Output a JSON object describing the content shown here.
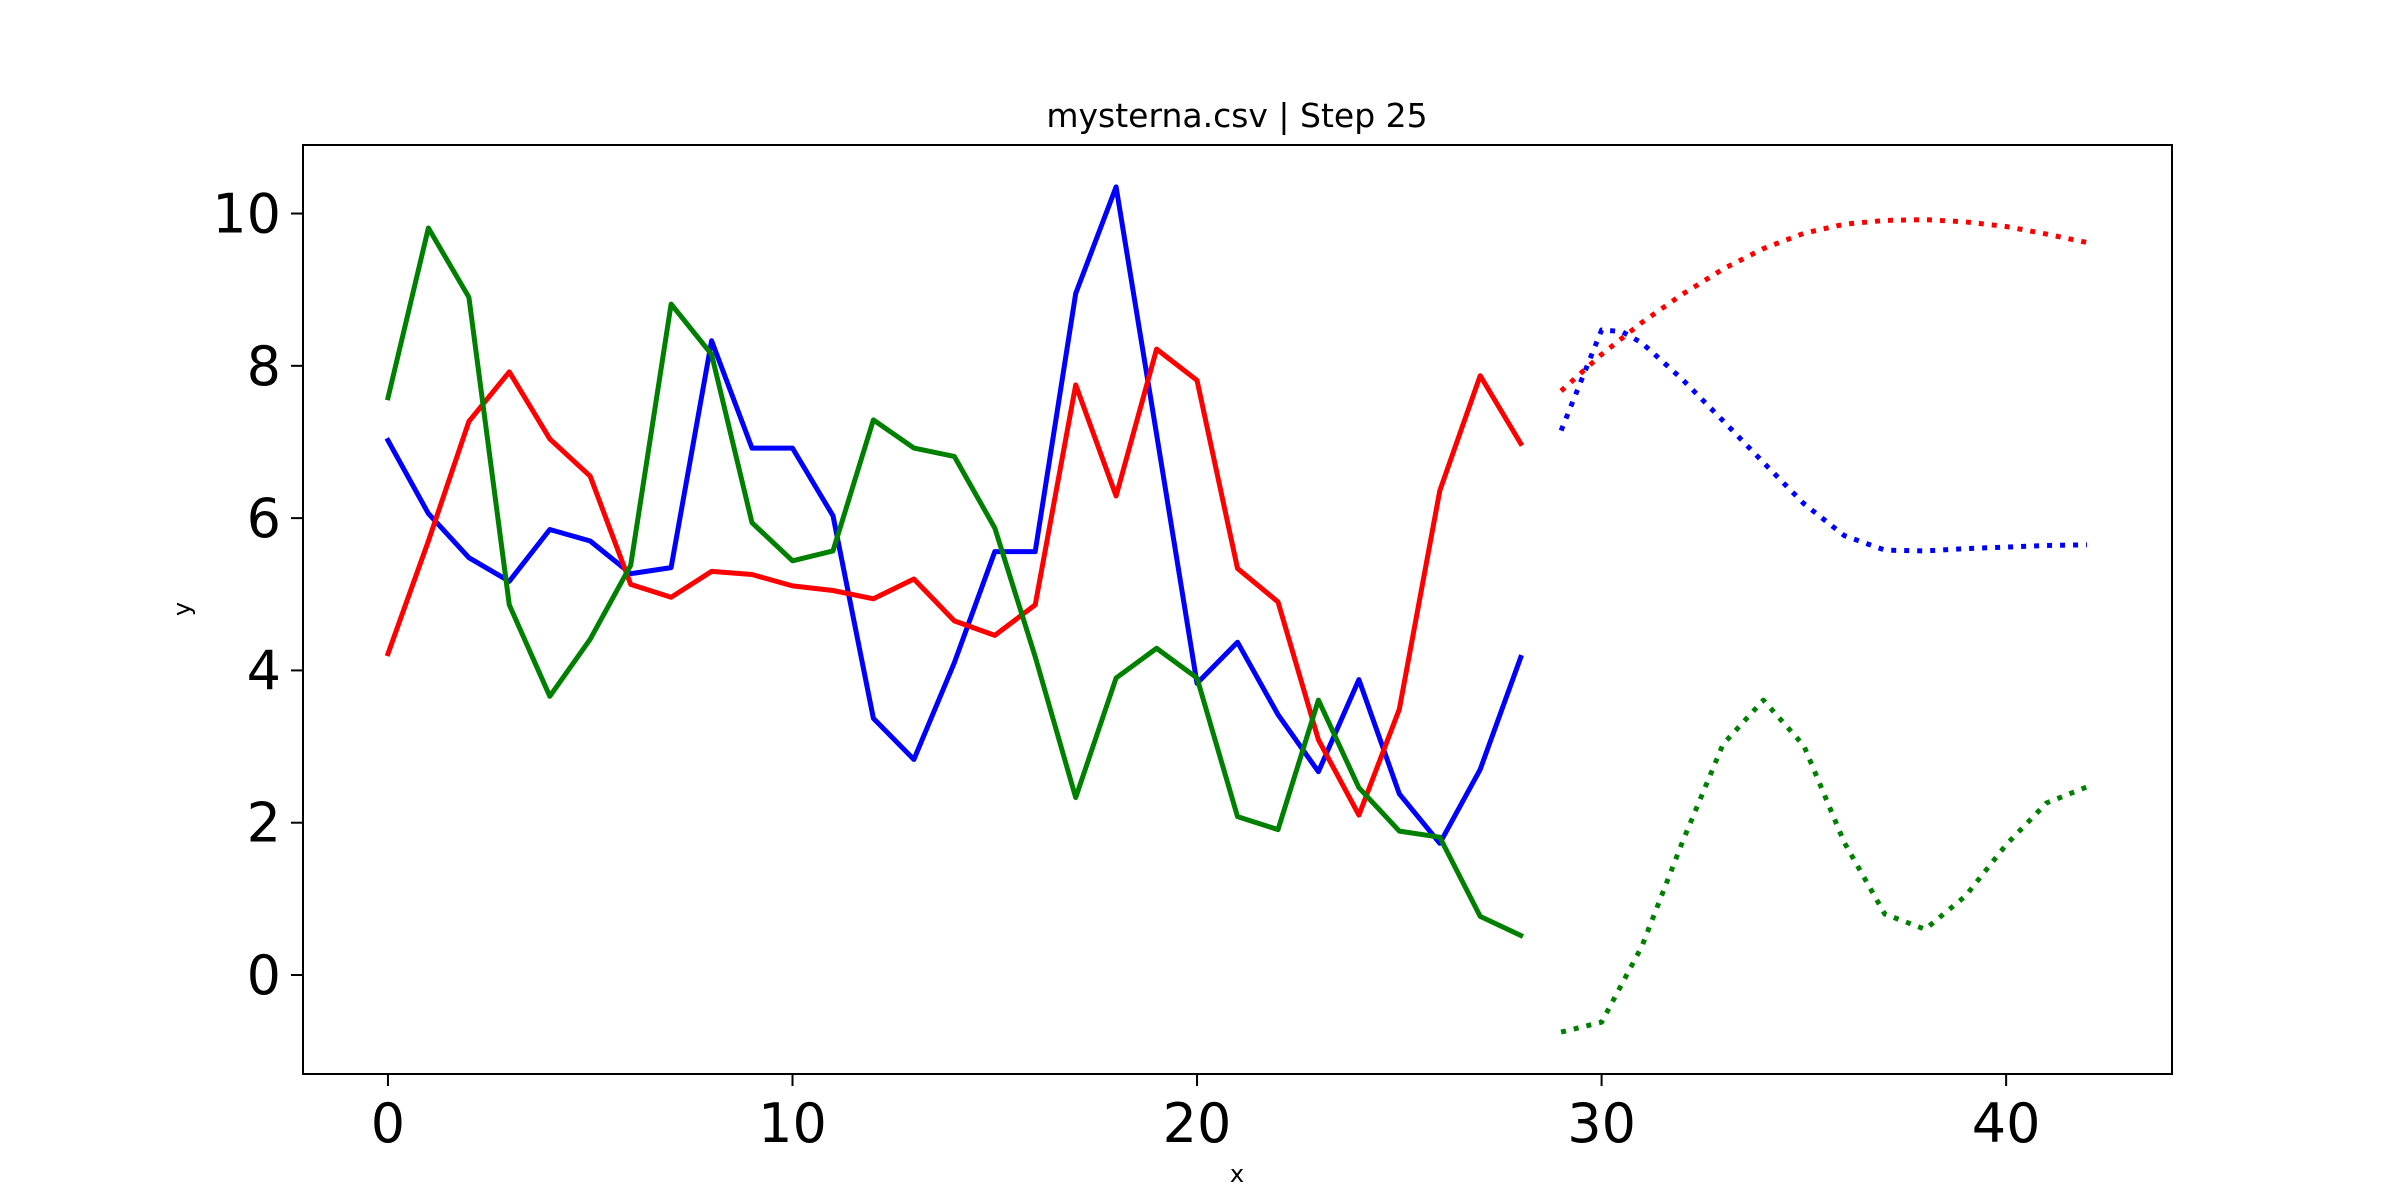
{
  "chart_data": {
    "type": "line",
    "title": "mysterna.csv | Step 25",
    "xlabel": "x",
    "ylabel": "y",
    "xlim": [
      -2.1,
      44.1
    ],
    "ylim": [
      -1.3,
      10.9
    ],
    "xticks": [
      0,
      10,
      20,
      30,
      40
    ],
    "yticks": [
      0,
      2,
      4,
      6,
      8,
      10
    ],
    "grid": false,
    "legend": "none",
    "series": [
      {
        "color": "#0000ff",
        "style": "solid",
        "x": [
          0,
          1,
          2,
          3,
          4,
          5,
          6,
          7,
          8,
          9,
          10,
          11,
          12,
          13,
          14,
          15,
          16,
          17,
          18,
          19,
          20,
          21,
          22,
          23,
          24,
          25,
          26,
          27,
          28
        ],
        "y": [
          7.02,
          6.06,
          5.48,
          5.17,
          5.85,
          5.7,
          5.27,
          5.35,
          8.33,
          6.92,
          6.92,
          6.03,
          3.37,
          2.83,
          4.1,
          5.56,
          5.56,
          8.95,
          10.35,
          7.1,
          3.83,
          4.37,
          3.42,
          2.67,
          3.88,
          2.38,
          1.73,
          2.7,
          4.17
        ]
      },
      {
        "color": "#ff0000",
        "style": "solid",
        "x": [
          0,
          1,
          2,
          3,
          4,
          5,
          6,
          7,
          8,
          9,
          10,
          11,
          12,
          13,
          14,
          15,
          16,
          17,
          18,
          19,
          20,
          21,
          22,
          23,
          24,
          25,
          26,
          27,
          28
        ],
        "y": [
          4.22,
          5.7,
          7.27,
          7.92,
          7.04,
          6.55,
          5.13,
          4.96,
          5.3,
          5.26,
          5.11,
          5.05,
          4.94,
          5.2,
          4.65,
          4.46,
          4.86,
          7.75,
          6.29,
          8.22,
          7.81,
          5.34,
          4.9,
          3.09,
          2.1,
          3.49,
          6.36,
          7.87,
          6.98
        ]
      },
      {
        "color": "#008000",
        "style": "solid",
        "x": [
          0,
          1,
          2,
          3,
          4,
          5,
          6,
          7,
          8,
          9,
          10,
          11,
          12,
          13,
          14,
          15,
          16,
          17,
          18,
          19,
          20,
          21,
          22,
          23,
          24,
          25,
          26,
          27,
          28
        ],
        "y": [
          7.58,
          9.81,
          8.9,
          4.86,
          3.66,
          4.41,
          5.38,
          8.81,
          8.15,
          5.94,
          5.44,
          5.57,
          7.29,
          6.92,
          6.81,
          5.87,
          4.18,
          2.33,
          3.9,
          4.29,
          3.9,
          2.08,
          1.91,
          3.61,
          2.46,
          1.89,
          1.81,
          0.77,
          0.52
        ]
      },
      {
        "color": "#ff0000",
        "style": "dotted",
        "x": [
          29,
          30,
          31,
          32,
          33,
          34,
          35,
          36,
          37,
          38,
          39,
          40,
          41,
          42
        ],
        "y": [
          7.67,
          8.15,
          8.57,
          8.94,
          9.27,
          9.54,
          9.74,
          9.86,
          9.91,
          9.92,
          9.89,
          9.83,
          9.73,
          9.62
        ]
      },
      {
        "color": "#0000ff",
        "style": "dotted",
        "x": [
          29,
          30,
          30.5,
          31,
          32,
          33,
          34,
          35,
          36,
          37,
          38,
          39,
          40,
          41,
          42
        ],
        "y": [
          7.15,
          8.47,
          8.45,
          8.3,
          7.82,
          7.28,
          6.73,
          6.19,
          5.77,
          5.58,
          5.57,
          5.6,
          5.62,
          5.64,
          5.65
        ]
      },
      {
        "color": "#008000",
        "style": "dotted",
        "x": [
          29,
          30,
          31,
          32,
          33,
          34,
          35,
          36,
          37,
          38,
          39,
          40,
          41,
          42
        ],
        "y": [
          -0.75,
          -0.62,
          0.38,
          1.75,
          3.03,
          3.61,
          3.01,
          1.74,
          0.8,
          0.6,
          1.04,
          1.71,
          2.26,
          2.47
        ]
      }
    ]
  }
}
